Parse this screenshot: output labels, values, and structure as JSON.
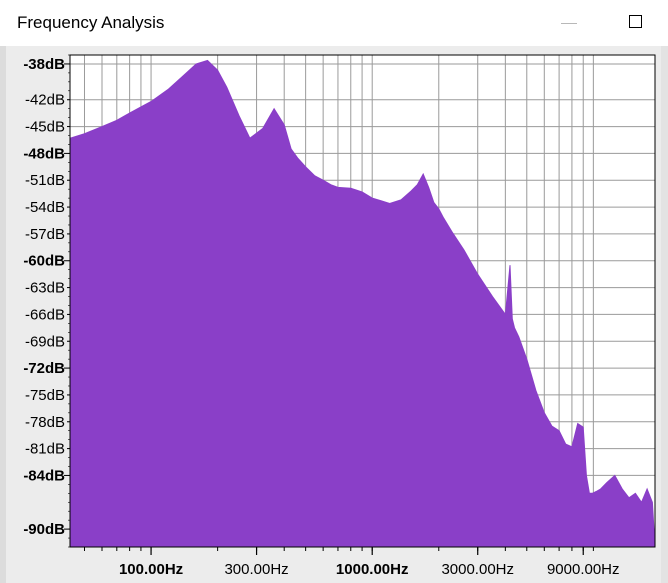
{
  "window": {
    "title": "Frequency Analysis"
  },
  "colors": {
    "fill": "#8a3fc8",
    "grid": "#9a9a9a",
    "plot_bg": "#ffffff",
    "panel_bg": "#ececec"
  },
  "chart_data": {
    "type": "area",
    "xlabel": "",
    "ylabel": "",
    "xscale": "log",
    "xlim": [
      43,
      19000
    ],
    "ylim": [
      -92,
      -37
    ],
    "grid": true,
    "y_ticks": [
      {
        "value": -38,
        "label": "-38dB",
        "bold": true
      },
      {
        "value": -42,
        "label": "-42dB",
        "bold": false
      },
      {
        "value": -45,
        "label": "-45dB",
        "bold": false
      },
      {
        "value": -48,
        "label": "-48dB",
        "bold": true
      },
      {
        "value": -51,
        "label": "-51dB",
        "bold": false
      },
      {
        "value": -54,
        "label": "-54dB",
        "bold": false
      },
      {
        "value": -57,
        "label": "-57dB",
        "bold": false
      },
      {
        "value": -60,
        "label": "-60dB",
        "bold": true
      },
      {
        "value": -63,
        "label": "-63dB",
        "bold": false
      },
      {
        "value": -66,
        "label": "-66dB",
        "bold": false
      },
      {
        "value": -69,
        "label": "-69dB",
        "bold": false
      },
      {
        "value": -72,
        "label": "-72dB",
        "bold": true
      },
      {
        "value": -75,
        "label": "-75dB",
        "bold": false
      },
      {
        "value": -78,
        "label": "-78dB",
        "bold": false
      },
      {
        "value": -81,
        "label": "-81dB",
        "bold": false
      },
      {
        "value": -84,
        "label": "-84dB",
        "bold": true
      },
      {
        "value": -90,
        "label": "-90dB",
        "bold": true
      }
    ],
    "x_ticks": [
      {
        "value": 100,
        "label": "100.00Hz",
        "bold": true
      },
      {
        "value": 300,
        "label": "300.00Hz",
        "bold": false
      },
      {
        "value": 1000,
        "label": "1000.00Hz",
        "bold": true
      },
      {
        "value": 3000,
        "label": "3000.00Hz",
        "bold": false
      },
      {
        "value": 9000,
        "label": "9000.00Hz",
        "bold": false
      }
    ],
    "series": [
      {
        "x": [
          43,
          50,
          60,
          70,
          80,
          90,
          100,
          120,
          140,
          160,
          180,
          200,
          220,
          250,
          280,
          320,
          360,
          400,
          430,
          460,
          500,
          550,
          600,
          650,
          700,
          800,
          900,
          1000,
          1100,
          1200,
          1350,
          1500,
          1600,
          1700,
          1800,
          1900,
          2000,
          2100,
          2300,
          2600,
          3000,
          3500,
          4000,
          4200,
          4300,
          4400,
          4600,
          5000,
          5500,
          6000,
          6500,
          7000,
          7500,
          8000,
          8500,
          9000,
          9300,
          9600,
          9900,
          10300,
          10800,
          11500,
          12500,
          13500,
          14500,
          15500,
          16500,
          17500,
          18500,
          19000
        ],
        "y": [
          -46.3,
          -45.8,
          -45.0,
          -44.3,
          -43.5,
          -42.8,
          -42.2,
          -40.8,
          -39.3,
          -38.0,
          -37.6,
          -38.7,
          -40.6,
          -43.8,
          -46.3,
          -45.2,
          -43.0,
          -44.8,
          -47.5,
          -48.5,
          -49.5,
          -50.5,
          -51.0,
          -51.5,
          -51.8,
          -51.9,
          -52.3,
          -53.0,
          -53.3,
          -53.6,
          -53.2,
          -52.2,
          -51.5,
          -50.3,
          -51.8,
          -53.5,
          -54.2,
          -55.2,
          -56.8,
          -58.8,
          -61.5,
          -64.0,
          -66.0,
          -60.5,
          -66.5,
          -67.5,
          -68.5,
          -71.0,
          -74.5,
          -77.0,
          -78.5,
          -79.0,
          -80.5,
          -80.8,
          -78.2,
          -78.6,
          -84.0,
          -86.0,
          -86.0,
          -85.8,
          -85.5,
          -84.8,
          -84.0,
          -85.5,
          -86.5,
          -86.0,
          -87.0,
          -85.5,
          -87.0,
          -92.0
        ]
      }
    ]
  }
}
